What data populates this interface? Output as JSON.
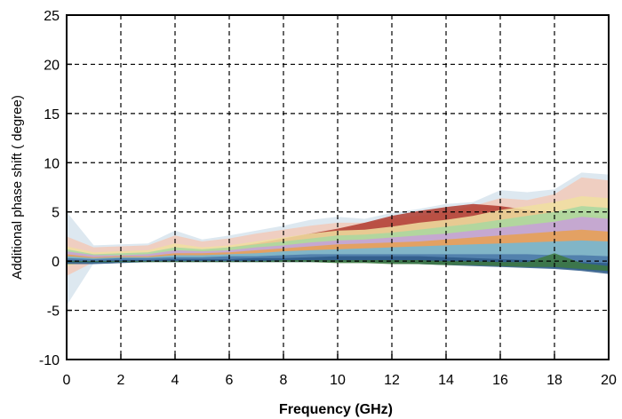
{
  "chart_data": {
    "type": "area",
    "title": "",
    "xlabel": "Frequency (GHz)",
    "ylabel": "Additional phase shift  ( degree)",
    "xlim": [
      0,
      20
    ],
    "ylim": [
      -10,
      25
    ],
    "xticks": [
      "0",
      "2",
      "4",
      "6",
      "8",
      "10",
      "12",
      "14",
      "16",
      "18",
      "20"
    ],
    "yticks": [
      "-10",
      "-5",
      "0",
      "5",
      "10",
      "15",
      "20",
      "25"
    ],
    "grid": true,
    "legend": "none",
    "x": [
      0,
      1,
      2,
      3,
      4,
      5,
      6,
      7,
      8,
      9,
      10,
      11,
      12,
      13,
      14,
      15,
      16,
      17,
      18,
      19,
      20
    ],
    "bands": [
      {
        "color": "#dde8f0",
        "upper": [
          5,
          1.6,
          1.7,
          1.8,
          3.1,
          2.2,
          2.6,
          3.1,
          3.6,
          4.2,
          4.5,
          4.3,
          4.9,
          5.3,
          5.8,
          6.0,
          7.2,
          7.0,
          7.3,
          9.0,
          8.8
        ],
        "lower": [
          -4.5,
          -0.2,
          0.1,
          0.1,
          0.2,
          0.1,
          0.2,
          0.2,
          0.3,
          0.3,
          0.4,
          0.4,
          0.4,
          0.3,
          0.3,
          0.2,
          0.0,
          -0.1,
          -0.2,
          -0.4,
          -1.2
        ]
      },
      {
        "color": "#f2c9b8",
        "upper": [
          2.5,
          1.4,
          1.5,
          1.6,
          2.6,
          2.0,
          2.3,
          2.8,
          3.2,
          3.6,
          3.9,
          3.9,
          4.3,
          4.6,
          5.0,
          5.6,
          6.4,
          6.2,
          6.8,
          8.5,
          8.2
        ],
        "lower": [
          -1.5,
          -0.1,
          0.1,
          0.1,
          0.2,
          0.1,
          0.2,
          0.2,
          0.3,
          0.3,
          0.4,
          0.4,
          0.4,
          0.3,
          0.3,
          0.2,
          0.0,
          -0.1,
          -0.2,
          -0.4,
          -1.0
        ]
      },
      {
        "color": "#b03a2e",
        "upper": [
          0.6,
          0.5,
          0.6,
          0.7,
          1.0,
          1.1,
          1.4,
          1.8,
          2.3,
          2.8,
          3.3,
          3.9,
          4.6,
          5.1,
          5.5,
          5.8,
          5.6,
          5.2,
          5.0,
          4.8,
          4.5
        ],
        "lower": [
          0.1,
          0.0,
          0.2,
          0.2,
          0.3,
          0.3,
          0.4,
          0.5,
          0.7,
          0.9,
          1.2,
          1.6,
          2.0,
          2.2,
          2.4,
          2.6,
          2.8,
          2.8,
          2.6,
          2.6,
          2.4
        ]
      },
      {
        "color": "#f0dfa0",
        "upper": [
          1.5,
          0.9,
          1.0,
          1.1,
          1.8,
          1.4,
          1.6,
          2.0,
          2.4,
          2.8,
          3.1,
          3.2,
          3.5,
          3.9,
          4.2,
          4.6,
          5.2,
          5.6,
          6.0,
          6.6,
          6.4
        ],
        "lower": [
          -0.5,
          0.0,
          0.1,
          0.1,
          0.2,
          0.2,
          0.2,
          0.3,
          0.3,
          0.4,
          0.4,
          0.4,
          0.4,
          0.4,
          0.3,
          0.3,
          0.2,
          0.1,
          0.0,
          -0.2,
          -0.6
        ]
      },
      {
        "color": "#a8d8a0",
        "upper": [
          1.2,
          0.7,
          0.8,
          0.9,
          1.4,
          1.2,
          1.4,
          1.7,
          2.0,
          2.3,
          2.6,
          2.7,
          2.9,
          3.2,
          3.5,
          3.8,
          4.2,
          4.6,
          5.0,
          5.6,
          5.4
        ],
        "lower": [
          -0.3,
          0.0,
          0.1,
          0.1,
          0.2,
          0.2,
          0.2,
          0.3,
          0.3,
          0.3,
          0.4,
          0.4,
          0.4,
          0.3,
          0.3,
          0.3,
          0.2,
          0.1,
          0.0,
          -0.2,
          -0.5
        ]
      },
      {
        "color": "#c8a0d8",
        "upper": [
          1.0,
          0.6,
          0.6,
          0.7,
          1.1,
          1.0,
          1.1,
          1.4,
          1.6,
          1.9,
          2.1,
          2.2,
          2.4,
          2.6,
          2.8,
          3.1,
          3.4,
          3.7,
          4.0,
          4.5,
          4.3
        ],
        "lower": [
          -0.2,
          0.0,
          0.1,
          0.1,
          0.2,
          0.2,
          0.2,
          0.2,
          0.3,
          0.3,
          0.3,
          0.3,
          0.3,
          0.3,
          0.3,
          0.2,
          0.2,
          0.1,
          0.0,
          -0.2,
          -0.4
        ]
      },
      {
        "color": "#e8a050",
        "upper": [
          0.7,
          0.4,
          0.5,
          0.5,
          0.8,
          0.8,
          0.9,
          1.1,
          1.3,
          1.5,
          1.7,
          1.8,
          1.9,
          2.0,
          2.2,
          2.4,
          2.6,
          2.8,
          3.0,
          3.2,
          3.0
        ],
        "lower": [
          -0.1,
          0.0,
          0.1,
          0.1,
          0.1,
          0.1,
          0.2,
          0.2,
          0.2,
          0.2,
          0.3,
          0.3,
          0.3,
          0.3,
          0.2,
          0.2,
          0.1,
          0.0,
          -0.1,
          -0.2,
          -0.5
        ]
      },
      {
        "color": "#70b8d8",
        "upper": [
          0.5,
          0.3,
          0.4,
          0.4,
          0.6,
          0.6,
          0.7,
          0.8,
          1.0,
          1.1,
          1.2,
          1.3,
          1.4,
          1.5,
          1.6,
          1.7,
          1.8,
          1.9,
          2.0,
          2.1,
          2.0
        ],
        "lower": [
          -0.1,
          -0.1,
          0.0,
          0.0,
          0.1,
          0.1,
          0.1,
          0.1,
          0.1,
          0.1,
          0.1,
          0.1,
          0.1,
          0.0,
          0.0,
          -0.1,
          -0.2,
          -0.3,
          -0.4,
          -0.6,
          -0.9
        ]
      },
      {
        "color": "#4a78a8",
        "upper": [
          0.3,
          0.2,
          0.3,
          0.3,
          0.4,
          0.4,
          0.5,
          0.5,
          0.6,
          0.7,
          0.7,
          0.7,
          0.7,
          0.7,
          0.7,
          0.7,
          0.7,
          0.7,
          0.6,
          0.6,
          0.5
        ],
        "lower": [
          -0.2,
          -0.2,
          -0.1,
          -0.1,
          0.0,
          0.0,
          0.0,
          0.0,
          0.0,
          0.0,
          0.0,
          -0.1,
          -0.1,
          -0.2,
          -0.3,
          -0.4,
          -0.5,
          -0.6,
          -0.7,
          -0.9,
          -1.1
        ]
      },
      {
        "color": "#2e5a88",
        "upper": [
          0.1,
          0.0,
          0.1,
          0.1,
          0.2,
          0.2,
          0.2,
          0.3,
          0.3,
          0.4,
          0.5,
          0.5,
          0.5,
          0.5,
          0.4,
          0.3,
          0.2,
          0.1,
          0.0,
          -0.1,
          -0.2
        ],
        "lower": [
          -0.3,
          -0.3,
          -0.2,
          -0.1,
          -0.1,
          -0.1,
          -0.1,
          -0.1,
          -0.1,
          -0.1,
          -0.1,
          -0.1,
          -0.2,
          -0.3,
          -0.4,
          -0.5,
          -0.6,
          -0.7,
          -0.8,
          -1.0,
          -1.3
        ]
      },
      {
        "color": "#3e7a40",
        "upper": [
          0.0,
          0.0,
          0.0,
          0.0,
          0.0,
          0.0,
          0.0,
          0.0,
          0.1,
          0.1,
          0.1,
          0.1,
          0.1,
          0.1,
          0.0,
          0.0,
          -0.1,
          -0.1,
          0.8,
          -0.2,
          -0.5
        ],
        "lower": [
          -0.1,
          -0.1,
          -0.1,
          -0.1,
          -0.1,
          -0.1,
          -0.1,
          -0.1,
          -0.1,
          -0.1,
          -0.2,
          -0.2,
          -0.3,
          -0.3,
          -0.4,
          -0.4,
          -0.5,
          -0.6,
          -0.6,
          -0.8,
          -1.0
        ]
      }
    ]
  }
}
